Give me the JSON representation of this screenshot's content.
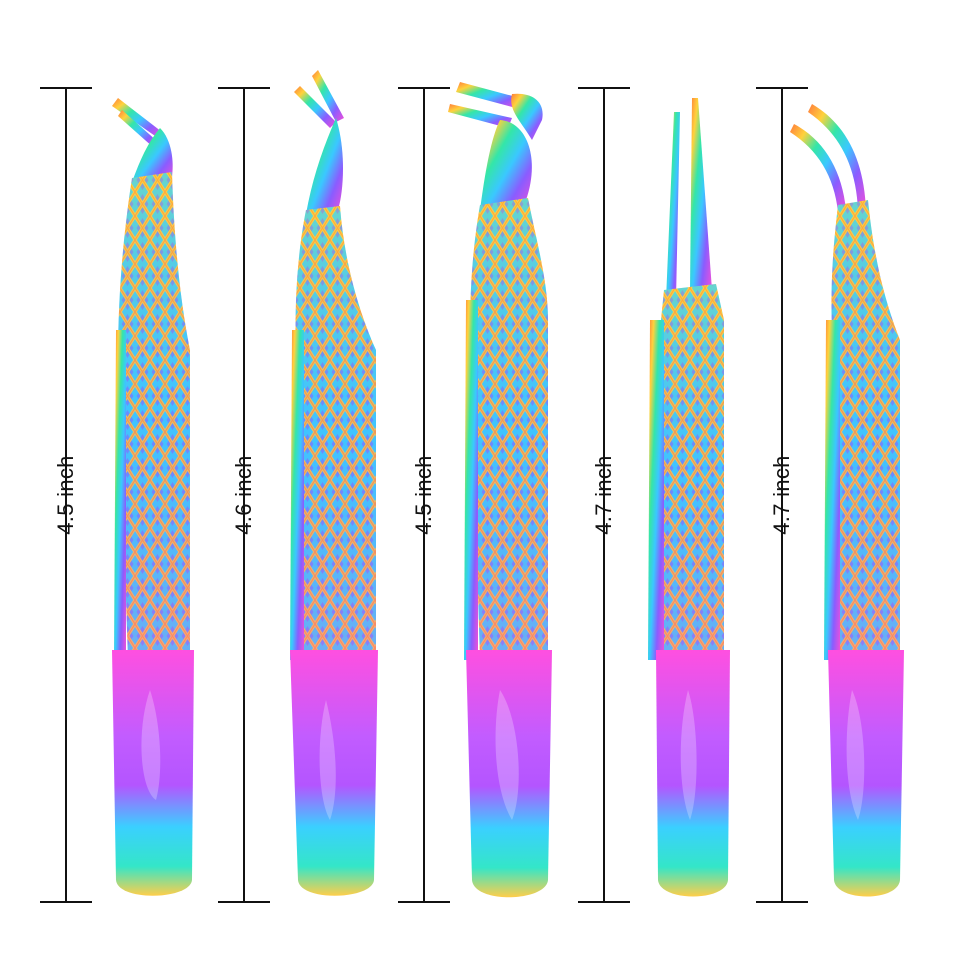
{
  "measurements": [
    {
      "label": "4.5 inch"
    },
    {
      "label": "4.6 inch"
    },
    {
      "label": "4.5 inch"
    },
    {
      "label": "4.7 inch"
    },
    {
      "label": "4.7 inch"
    }
  ],
  "products": [
    {
      "name": "angled-tip-tweezer"
    },
    {
      "name": "l-shape-tip-tweezer"
    },
    {
      "name": "boot-tip-tweezer"
    },
    {
      "name": "straight-tip-tweezer"
    },
    {
      "name": "curved-tip-tweezer"
    }
  ],
  "colors": {
    "background": "#ffffff",
    "ruler": "#111111",
    "iridescent": [
      "#f24fd8",
      "#8a5cff",
      "#3ac8ff",
      "#34e6d2",
      "#ffd23c",
      "#ff7a3c"
    ]
  }
}
